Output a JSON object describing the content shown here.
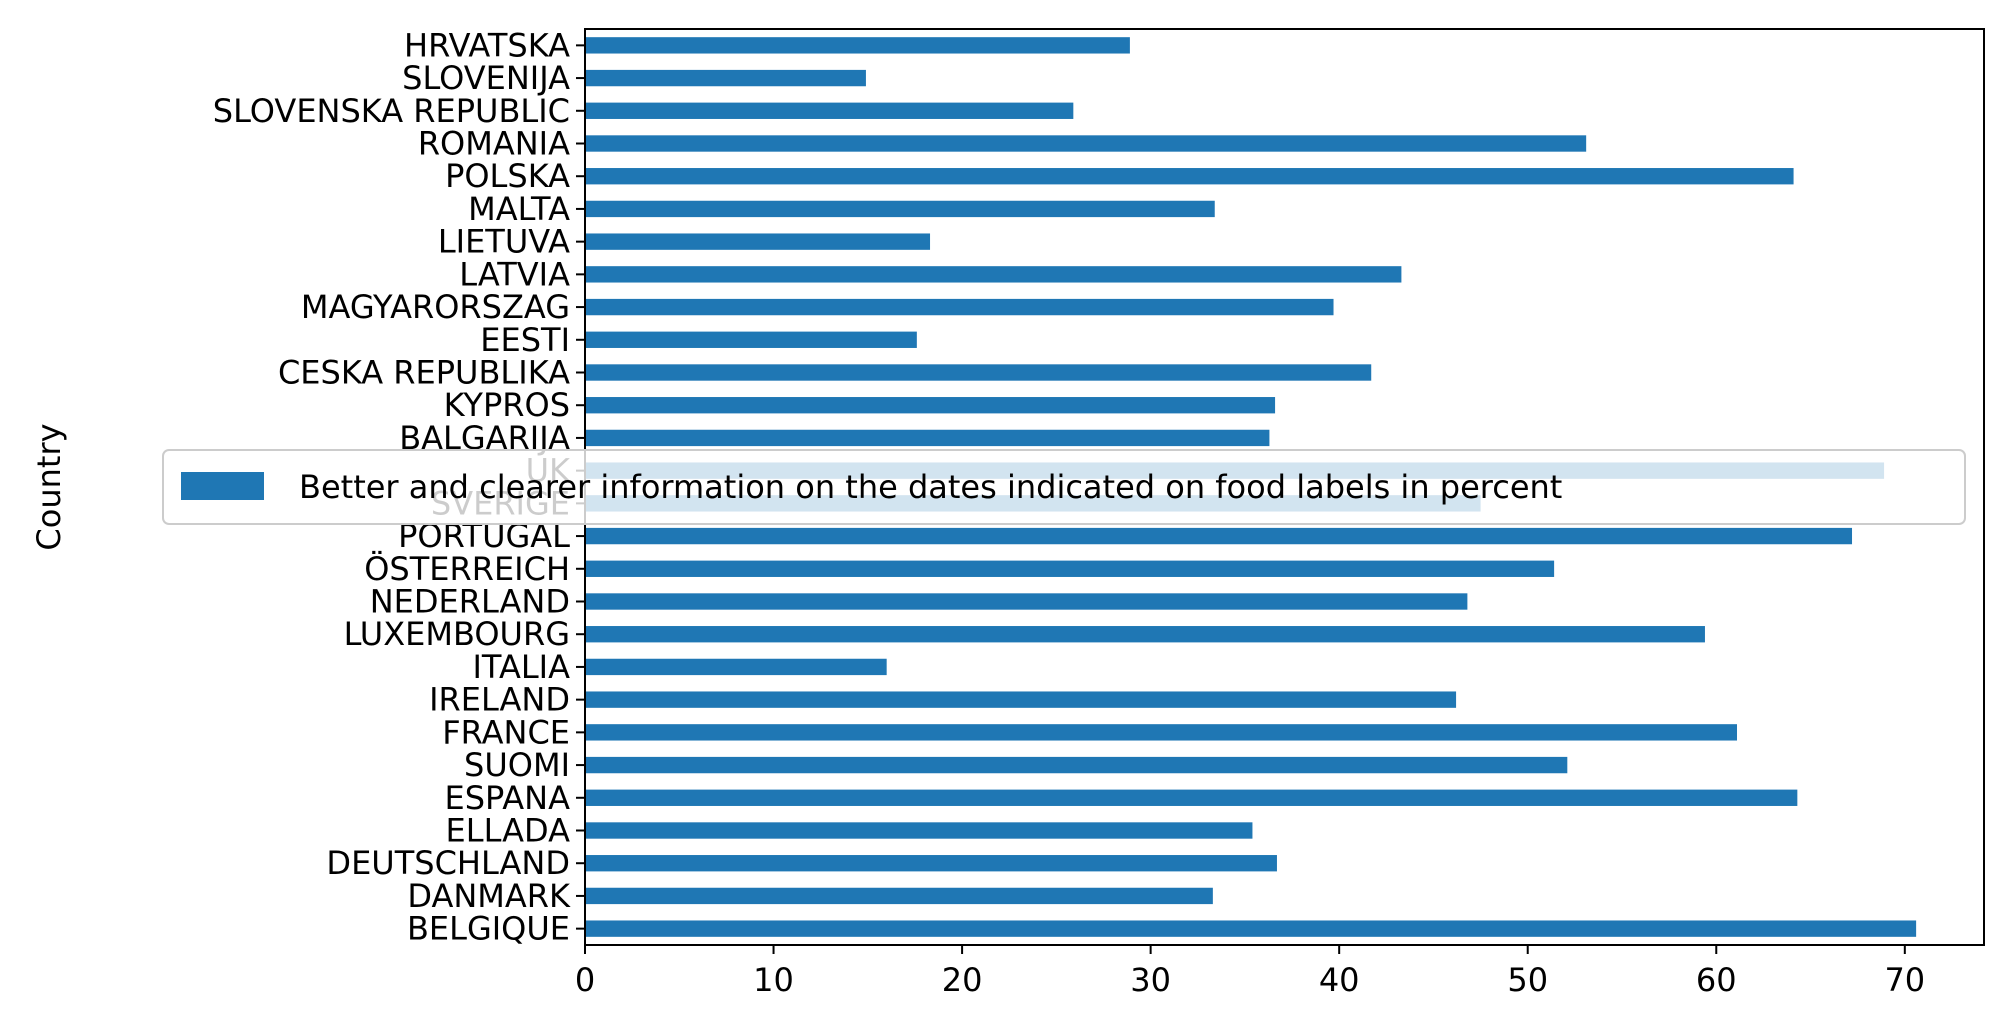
{
  "chart_data": {
    "type": "bar",
    "orientation": "horizontal",
    "ylabel": "Country",
    "xlabel": "",
    "xlim": [
      0,
      74.2
    ],
    "xticks": [
      0,
      10,
      20,
      30,
      40,
      50,
      60,
      70
    ],
    "grid": false,
    "legend_placement": "center",
    "color": "#1f77b4",
    "categories": [
      "BELGIQUE",
      "DANMARK",
      "DEUTSCHLAND",
      "ELLADA",
      "ESPANA",
      "SUOMI",
      "FRANCE",
      "IRELAND",
      "ITALIA",
      "LUXEMBOURG",
      "NEDERLAND",
      "ÖSTERREICH",
      "PORTUGAL",
      "SVERIGE",
      "UK",
      "BALGARIJA",
      "KYPROS",
      "CESKA REPUBLIKA",
      "EESTI",
      "MAGYARORSZAG",
      "LATVIA",
      "LIETUVA",
      "MALTA",
      "POLSKA",
      "ROMANIA",
      "SLOVENSKA REPUBLIC",
      "SLOVENIJA",
      "HRVATSKA"
    ],
    "series": [
      {
        "name": "Better and clearer information on the dates indicated on food labels in percent",
        "values": [
          70.6,
          33.3,
          36.7,
          35.4,
          64.3,
          52.1,
          61.1,
          46.2,
          16.0,
          59.4,
          46.8,
          51.4,
          67.2,
          47.5,
          68.9,
          36.3,
          36.6,
          41.7,
          17.6,
          39.7,
          43.3,
          18.3,
          33.4,
          64.1,
          53.1,
          25.9,
          14.9,
          28.9
        ]
      }
    ]
  }
}
